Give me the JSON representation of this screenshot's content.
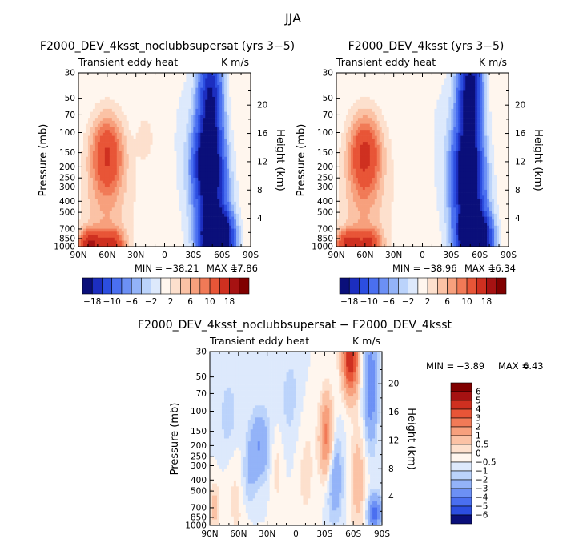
{
  "main_title": "JJA",
  "chart_data": [
    {
      "type": "heatmap",
      "id": "p1",
      "title": "F2000_DEV_4ksst_noclubbsupersat (yrs 3−5)",
      "left_label": "Transient eddy heat",
      "right_label": "K m/s",
      "ylabel": "Pressure (mb)",
      "ylabel_right": "Height (km)",
      "x_ticks": [
        "90N",
        "60N",
        "30N",
        "0",
        "30S",
        "60S",
        "90S"
      ],
      "p_ticks": [
        "30",
        "50",
        "70",
        "100",
        "150",
        "200",
        "250",
        "300",
        "400",
        "500",
        "700",
        "850",
        "1000"
      ],
      "p_values": [
        30,
        50,
        70,
        100,
        150,
        200,
        250,
        300,
        400,
        500,
        700,
        850,
        1000
      ],
      "h_ticks": [
        "4",
        "8",
        "12",
        "16",
        "20"
      ],
      "h_values": [
        4,
        8,
        12,
        16,
        20
      ],
      "min_label": "MIN =",
      "min": "−38.21",
      "max_label": "MAX =",
      "max": "17.86",
      "features": [
        {
          "lat": 60,
          "p": 150,
          "val": 12,
          "sx": 12,
          "sy": 0.55
        },
        {
          "lat": 78,
          "p": 950,
          "val": 16,
          "sx": 9,
          "sy": 0.2
        },
        {
          "lat": 55,
          "p": 950,
          "val": 12,
          "sx": 9,
          "sy": 0.2
        },
        {
          "lat": 62,
          "p": 500,
          "val": 5,
          "sx": 18,
          "sy": 1.0
        },
        {
          "lat": 20,
          "p": 110,
          "val": 3,
          "sx": 6,
          "sy": 0.3
        },
        {
          "lat": 8,
          "p": 300,
          "val": 2,
          "sx": 20,
          "sy": 1.5
        },
        {
          "lat": -48,
          "p": 45,
          "val": -20,
          "sx": 9,
          "sy": 0.7
        },
        {
          "lat": -45,
          "p": 180,
          "val": -22,
          "sx": 10,
          "sy": 0.6
        },
        {
          "lat": -55,
          "p": 850,
          "val": -38,
          "sx": 11,
          "sy": 0.35
        },
        {
          "lat": -50,
          "p": 400,
          "val": -15,
          "sx": 13,
          "sy": 0.9
        },
        {
          "lat": -15,
          "p": 150,
          "val": -3,
          "sx": 22,
          "sy": 1.6
        }
      ]
    },
    {
      "type": "heatmap",
      "id": "p2",
      "title": "F2000_DEV_4ksst (yrs 3−5)",
      "left_label": "Transient eddy heat",
      "right_label": "K m/s",
      "ylabel": "Pressure (mb)",
      "ylabel_right": "Height (km)",
      "x_ticks": [
        "90N",
        "60N",
        "30N",
        "0",
        "30S",
        "60S",
        "90S"
      ],
      "p_ticks": [
        "30",
        "50",
        "70",
        "100",
        "150",
        "200",
        "250",
        "300",
        "400",
        "500",
        "700",
        "850",
        "1000"
      ],
      "p_values": [
        30,
        50,
        70,
        100,
        150,
        200,
        250,
        300,
        400,
        500,
        700,
        850,
        1000
      ],
      "h_ticks": [
        "4",
        "8",
        "12",
        "16",
        "20"
      ],
      "h_values": [
        4,
        8,
        12,
        16,
        20
      ],
      "min_label": "MIN =",
      "min": "−38.96",
      "max_label": "MAX =",
      "max": "16.34",
      "features": [
        {
          "lat": 60,
          "p": 150,
          "val": 13,
          "sx": 12,
          "sy": 0.55
        },
        {
          "lat": 78,
          "p": 950,
          "val": 14,
          "sx": 9,
          "sy": 0.2
        },
        {
          "lat": 55,
          "p": 950,
          "val": 11,
          "sx": 9,
          "sy": 0.2
        },
        {
          "lat": 62,
          "p": 500,
          "val": 5,
          "sx": 18,
          "sy": 1.0
        },
        {
          "lat": 8,
          "p": 300,
          "val": 2,
          "sx": 20,
          "sy": 1.5
        },
        {
          "lat": -50,
          "p": 40,
          "val": -24,
          "sx": 9,
          "sy": 0.6
        },
        {
          "lat": -47,
          "p": 200,
          "val": -22,
          "sx": 10,
          "sy": 0.7
        },
        {
          "lat": -55,
          "p": 850,
          "val": -38,
          "sx": 11,
          "sy": 0.35
        },
        {
          "lat": -50,
          "p": 400,
          "val": -15,
          "sx": 13,
          "sy": 0.9
        },
        {
          "lat": -15,
          "p": 150,
          "val": -3,
          "sx": 22,
          "sy": 1.6
        }
      ]
    },
    {
      "type": "heatmap",
      "id": "p3",
      "title": "F2000_DEV_4ksst_noclubbsupersat − F2000_DEV_4ksst",
      "left_label": "Transient eddy heat",
      "right_label": "K m/s",
      "ylabel": "Pressure (mb)",
      "ylabel_right": "Height (km)",
      "x_ticks": [
        "90N",
        "60N",
        "30N",
        "0",
        "30S",
        "60S",
        "90S"
      ],
      "p_ticks": [
        "30",
        "50",
        "70",
        "100",
        "150",
        "200",
        "250",
        "300",
        "400",
        "500",
        "700",
        "850",
        "1000"
      ],
      "p_values": [
        30,
        50,
        70,
        100,
        150,
        200,
        250,
        300,
        400,
        500,
        700,
        850,
        1000
      ],
      "h_ticks": [
        "4",
        "8",
        "12",
        "16",
        "20"
      ],
      "h_values": [
        4,
        8,
        12,
        16,
        20
      ],
      "min_label": "MIN =",
      "min": "−3.89",
      "max_label": "MAX =",
      "max": "6.43",
      "features": [
        {
          "lat": -57,
          "p": 35,
          "val": 6,
          "sx": 6,
          "sy": 0.5
        },
        {
          "lat": -32,
          "p": 170,
          "val": 3.5,
          "sx": 5,
          "sy": 0.6
        },
        {
          "lat": -78,
          "p": 60,
          "val": -3,
          "sx": 5,
          "sy": 0.8
        },
        {
          "lat": -82,
          "p": 780,
          "val": -3.5,
          "sx": 5,
          "sy": 0.25
        },
        {
          "lat": -40,
          "p": 380,
          "val": -2,
          "sx": 6,
          "sy": 0.6
        },
        {
          "lat": 38,
          "p": 200,
          "val": -2,
          "sx": 8,
          "sy": 0.5
        },
        {
          "lat": 70,
          "p": 120,
          "val": -0.8,
          "sx": 8,
          "sy": 0.7
        },
        {
          "lat": 5,
          "p": 80,
          "val": -0.7,
          "sx": 10,
          "sy": 0.8
        },
        {
          "lat": 60,
          "p": 500,
          "val": 0.8,
          "sx": 10,
          "sy": 0.8
        },
        {
          "lat": -10,
          "p": 300,
          "val": 0.7,
          "sx": 8,
          "sy": 1.0
        },
        {
          "lat": -65,
          "p": 400,
          "val": 1.5,
          "sx": 6,
          "sy": 0.8
        },
        {
          "lat": 85,
          "p": 700,
          "val": 1.2,
          "sx": 4,
          "sy": 0.4
        },
        {
          "lat": 50,
          "p": 400,
          "val": -1.2,
          "sx": 6,
          "sy": 0.5
        },
        {
          "lat": 20,
          "p": 300,
          "val": 0.8,
          "sx": 5,
          "sy": 0.6
        }
      ]
    }
  ],
  "colorbar_horizontal": {
    "labels": [
      "−18",
      "−10",
      "−6",
      "−2",
      "2",
      "6",
      "10",
      "18"
    ],
    "levels": [
      -22,
      -18,
      -14,
      -10,
      -8,
      -6,
      -4,
      -2,
      2,
      4,
      6,
      8,
      10,
      14,
      18,
      22
    ]
  },
  "colorbar_vertical": {
    "labels": [
      "6",
      "5",
      "4",
      "3",
      "2",
      "1",
      "0.5",
      "0",
      "−0.5",
      "−1",
      "−2",
      "−3",
      "−4",
      "−5",
      "−6"
    ],
    "levels": [
      -6,
      -5,
      -4,
      -3,
      -2,
      -1,
      -0.5,
      0,
      0.5,
      1,
      2,
      3,
      4,
      5,
      6
    ]
  },
  "colors": [
    "#0a0f7a",
    "#1c2ec0",
    "#2c4ee0",
    "#4a6ff0",
    "#6c90f5",
    "#93b3f8",
    "#bbd3fb",
    "#dde9fc",
    "#fff6ee",
    "#fde0cd",
    "#fbc2a5",
    "#f7a07d",
    "#f17a57",
    "#e85537",
    "#cf3020",
    "#a61212",
    "#800000"
  ]
}
